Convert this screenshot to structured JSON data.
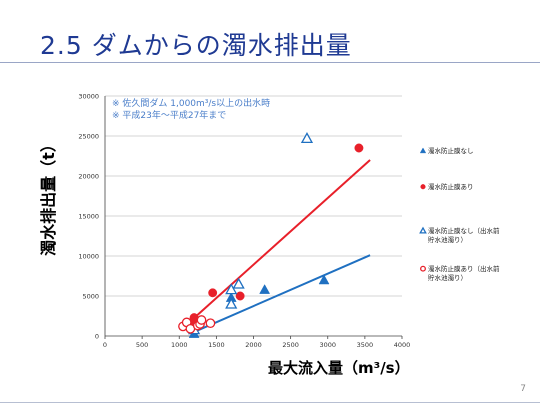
{
  "slide": {
    "title": "2.5 ダムからの濁水排出量",
    "page_number": "7"
  },
  "chart_data": {
    "type": "scatter",
    "xlabel": "最大流入量（m³/s）",
    "ylabel": "濁水排出量（t）",
    "xlim": [
      0,
      4000
    ],
    "ylim": [
      0,
      30000
    ],
    "xticks": [
      "0",
      "500",
      "1000",
      "1500",
      "2000",
      "2500",
      "3000",
      "3500",
      "4000"
    ],
    "yticks": [
      "0",
      "5000",
      "10000",
      "15000",
      "20000",
      "25000",
      "30000"
    ],
    "grid": "horizontal",
    "legend_position": "right",
    "annotations": [
      "※ 佐久間ダム 1,000m³/s以上の出水時",
      "※ 平成23年～平成27年まで"
    ],
    "colors": {
      "blue": "#1f70c1",
      "red": "#e8202a",
      "title": "#1f3a93",
      "annotation": "#4a7ec9"
    },
    "series": [
      {
        "name": "濁水防止膜なし",
        "marker": "triangle-filled",
        "color": "#1f70c1",
        "points": [
          [
            1200,
            300
          ],
          [
            1700,
            4800
          ],
          [
            2150,
            5800
          ],
          [
            2950,
            7000
          ]
        ]
      },
      {
        "name": "濁水防止膜あり",
        "marker": "circle-filled",
        "color": "#e8202a",
        "points": [
          [
            1180,
            1800
          ],
          [
            1200,
            2300
          ],
          [
            1450,
            5400
          ],
          [
            1820,
            5000
          ],
          [
            3420,
            23500
          ]
        ]
      },
      {
        "name": "濁水防止膜なし（出水前貯水池濁り）",
        "marker": "triangle-open",
        "color": "#1f70c1",
        "points": [
          [
            1200,
            800
          ],
          [
            1700,
            4000
          ],
          [
            1700,
            5800
          ],
          [
            1800,
            6500
          ],
          [
            2720,
            24700
          ]
        ]
      },
      {
        "name": "濁水防止膜あり（出水前貯水池濁り）",
        "marker": "circle-open",
        "color": "#e8202a",
        "points": [
          [
            1050,
            1200
          ],
          [
            1100,
            1700
          ],
          [
            1150,
            900
          ],
          [
            1250,
            1300
          ],
          [
            1280,
            1500
          ],
          [
            1300,
            2000
          ],
          [
            1420,
            1600
          ]
        ]
      }
    ],
    "trendlines": [
      {
        "color": "#1f70c1",
        "from": [
          1150,
          300
        ],
        "to": [
          3570,
          10100
        ]
      },
      {
        "color": "#e8202a",
        "from": [
          1170,
          2000
        ],
        "to": [
          3570,
          22000
        ]
      }
    ],
    "legend_items": [
      {
        "lines": [
          "濁水防止膜なし"
        ],
        "marker": "triangle-filled",
        "color": "#1f70c1"
      },
      {
        "lines": [
          "濁水防止膜あり"
        ],
        "marker": "circle-filled",
        "color": "#e8202a"
      },
      {
        "lines": [
          "濁水防止膜なし（出水前",
          "貯水池濁り）"
        ],
        "marker": "triangle-open",
        "color": "#1f70c1"
      },
      {
        "lines": [
          "濁水防止膜あり（出水前",
          "貯水池濁り）"
        ],
        "marker": "circle-open",
        "color": "#e8202a"
      }
    ]
  }
}
